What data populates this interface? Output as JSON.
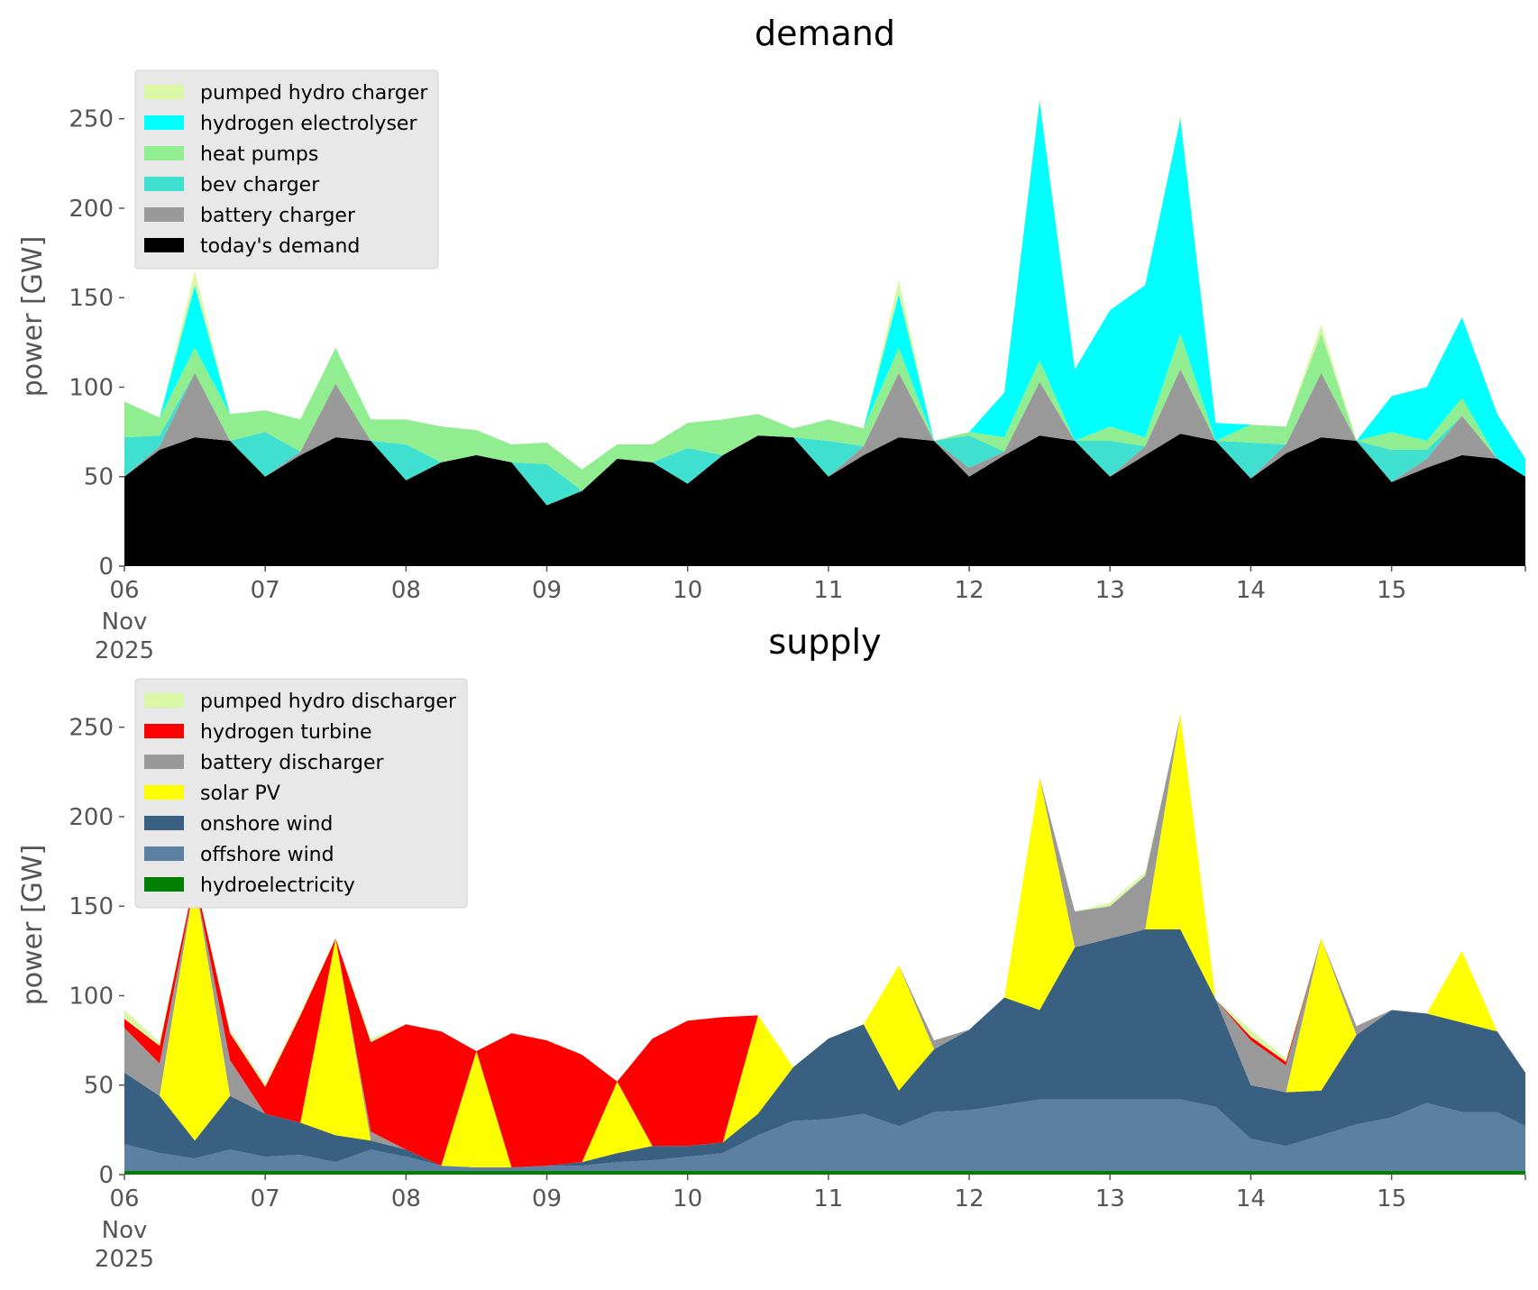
{
  "chart_data": [
    {
      "type": "area",
      "stacked": true,
      "title": "demand",
      "xlabel": "",
      "ylabel": "power [GW]",
      "ylim": [
        0,
        270
      ],
      "yticks": [
        0,
        50,
        100,
        150,
        200,
        250
      ],
      "xlim": [
        0,
        9.95
      ],
      "xticks": [
        {
          "x": 0,
          "label": "06",
          "sub": [
            "Nov",
            "2025"
          ]
        },
        {
          "x": 1,
          "label": "07"
        },
        {
          "x": 2,
          "label": "08"
        },
        {
          "x": 3,
          "label": "09"
        },
        {
          "x": 4,
          "label": "10"
        },
        {
          "x": 5,
          "label": "11"
        },
        {
          "x": 6,
          "label": "12"
        },
        {
          "x": 7,
          "label": "13"
        },
        {
          "x": 8,
          "label": "14"
        },
        {
          "x": 9,
          "label": "15"
        }
      ],
      "x_unit": "days after 06 Nov 2025",
      "grid": false,
      "legend_position": "upper-left",
      "legend_order": [
        "pumped hydro charger",
        "hydrogen electrolyser",
        "heat pumps",
        "bev charger",
        "battery charger",
        "today's demand"
      ],
      "x": [
        0,
        0.25,
        0.5,
        0.75,
        1,
        1.25,
        1.5,
        1.75,
        2,
        2.25,
        2.5,
        2.75,
        3,
        3.25,
        3.5,
        3.75,
        4,
        4.25,
        4.5,
        4.75,
        5,
        5.25,
        5.5,
        5.75,
        6,
        6.25,
        6.5,
        6.75,
        7,
        7.25,
        7.5,
        7.75,
        8,
        8.25,
        8.5,
        8.75,
        9,
        9.25,
        9.5,
        9.75,
        9.95
      ],
      "series": [
        {
          "name": "today's demand",
          "color": "#000000",
          "values": [
            50,
            65,
            72,
            70,
            50,
            62,
            72,
            70,
            48,
            58,
            62,
            58,
            34,
            42,
            60,
            58,
            46,
            62,
            73,
            72,
            50,
            62,
            72,
            70,
            50,
            62,
            73,
            70,
            50,
            62,
            74,
            70,
            49,
            63,
            72,
            70,
            47,
            55,
            62,
            60,
            50
          ]
        },
        {
          "name": "battery charger",
          "color": "#999999",
          "values": [
            0,
            2,
            36,
            0,
            0,
            2,
            30,
            0,
            0,
            0,
            0,
            0,
            0,
            0,
            0,
            0,
            0,
            0,
            0,
            0,
            0,
            5,
            36,
            0,
            5,
            2,
            30,
            0,
            0,
            5,
            36,
            0,
            0,
            5,
            36,
            0,
            0,
            5,
            22,
            0,
            0
          ]
        },
        {
          "name": "bev charger",
          "color": "#40E0D0",
          "values": [
            22,
            6,
            0,
            0,
            25,
            0,
            0,
            0,
            20,
            0,
            0,
            0,
            23,
            0,
            0,
            0,
            20,
            0,
            0,
            0,
            20,
            0,
            0,
            0,
            18,
            0,
            0,
            0,
            20,
            0,
            0,
            0,
            20,
            0,
            0,
            0,
            18,
            5,
            0,
            0,
            0
          ]
        },
        {
          "name": "heat pumps",
          "color": "#90EE90",
          "values": [
            20,
            10,
            14,
            15,
            12,
            18,
            20,
            12,
            14,
            20,
            14,
            10,
            12,
            12,
            8,
            10,
            14,
            20,
            12,
            5,
            12,
            10,
            14,
            0,
            2,
            8,
            12,
            0,
            8,
            5,
            20,
            0,
            10,
            10,
            22,
            0,
            10,
            5,
            10,
            0,
            0
          ]
        },
        {
          "name": "hydrogen electrolyser",
          "color": "#00FFFF",
          "values": [
            0,
            0,
            35,
            0,
            0,
            0,
            0,
            0,
            0,
            0,
            0,
            0,
            0,
            0,
            0,
            0,
            0,
            0,
            0,
            0,
            0,
            0,
            30,
            0,
            0,
            25,
            145,
            40,
            65,
            85,
            120,
            10,
            0,
            0,
            0,
            0,
            20,
            30,
            45,
            25,
            10
          ]
        },
        {
          "name": "pumped hydro charger",
          "color": "#DAF7A6",
          "values": [
            0,
            0,
            8,
            0,
            0,
            0,
            0,
            0,
            0,
            0,
            0,
            0,
            0,
            0,
            0,
            0,
            0,
            0,
            0,
            0,
            0,
            0,
            8,
            0,
            0,
            0,
            2,
            0,
            0,
            0,
            2,
            0,
            0,
            0,
            5,
            0,
            0,
            0,
            0,
            0,
            0
          ]
        }
      ]
    },
    {
      "type": "area",
      "stacked": true,
      "title": "supply",
      "xlabel": "",
      "ylabel": "power [GW]",
      "ylim": [
        0,
        270
      ],
      "yticks": [
        0,
        50,
        100,
        150,
        200,
        250
      ],
      "xlim": [
        0,
        9.95
      ],
      "xticks": [
        {
          "x": 0,
          "label": "06",
          "sub": [
            "Nov",
            "2025"
          ]
        },
        {
          "x": 1,
          "label": "07"
        },
        {
          "x": 2,
          "label": "08"
        },
        {
          "x": 3,
          "label": "09"
        },
        {
          "x": 4,
          "label": "10"
        },
        {
          "x": 5,
          "label": "11"
        },
        {
          "x": 6,
          "label": "12"
        },
        {
          "x": 7,
          "label": "13"
        },
        {
          "x": 8,
          "label": "14"
        },
        {
          "x": 9,
          "label": "15"
        }
      ],
      "x_unit": "days after 06 Nov 2025",
      "grid": false,
      "legend_position": "upper-left",
      "legend_order": [
        "pumped hydro discharger",
        "hydrogen turbine",
        "battery discharger",
        "solar PV",
        "onshore wind",
        "offshore wind",
        "hydroelectricity"
      ],
      "x": [
        0,
        0.25,
        0.5,
        0.75,
        1,
        1.25,
        1.5,
        1.75,
        2,
        2.25,
        2.5,
        2.75,
        3,
        3.25,
        3.5,
        3.75,
        4,
        4.25,
        4.5,
        4.75,
        5,
        5.25,
        5.5,
        5.75,
        6,
        6.25,
        6.5,
        6.75,
        7,
        7.25,
        7.5,
        7.75,
        8,
        8.25,
        8.5,
        8.75,
        9,
        9.25,
        9.5,
        9.75,
        9.95
      ],
      "series": [
        {
          "name": "hydroelectricity",
          "color": "#008000",
          "values": [
            2,
            2,
            2,
            2,
            2,
            2,
            2,
            2,
            2,
            2,
            2,
            2,
            2,
            2,
            2,
            2,
            2,
            2,
            2,
            2,
            2,
            2,
            2,
            2,
            2,
            2,
            2,
            2,
            2,
            2,
            2,
            2,
            2,
            2,
            2,
            2,
            2,
            2,
            2,
            2,
            2
          ]
        },
        {
          "name": "offshore wind",
          "color": "#5B80A2",
          "values": [
            15,
            10,
            7,
            12,
            8,
            9,
            5,
            12,
            8,
            3,
            2,
            2,
            3,
            3,
            5,
            6,
            8,
            10,
            20,
            28,
            29,
            32,
            25,
            33,
            34,
            37,
            40,
            40,
            40,
            40,
            40,
            36,
            18,
            14,
            20,
            26,
            30,
            38,
            33,
            33,
            25
          ]
        },
        {
          "name": "onshore wind",
          "color": "#3A6081",
          "values": [
            40,
            32,
            10,
            30,
            24,
            18,
            15,
            5,
            4,
            0,
            0,
            0,
            0,
            2,
            5,
            8,
            6,
            6,
            12,
            30,
            45,
            50,
            20,
            35,
            45,
            60,
            50,
            85,
            90,
            95,
            95,
            60,
            30,
            30,
            25,
            50,
            60,
            50,
            50,
            45,
            30
          ]
        },
        {
          "name": "solar PV",
          "color": "#FFFF00",
          "values": [
            0,
            0,
            145,
            0,
            0,
            0,
            110,
            0,
            0,
            0,
            65,
            0,
            0,
            0,
            40,
            0,
            0,
            0,
            55,
            0,
            0,
            0,
            70,
            0,
            0,
            0,
            130,
            0,
            0,
            0,
            120,
            0,
            0,
            0,
            85,
            0,
            0,
            0,
            40,
            0,
            0
          ]
        },
        {
          "name": "battery discharger",
          "color": "#999999",
          "values": [
            25,
            18,
            0,
            20,
            0,
            0,
            0,
            5,
            0,
            0,
            0,
            0,
            0,
            0,
            0,
            0,
            0,
            0,
            0,
            0,
            0,
            0,
            0,
            5,
            0,
            0,
            0,
            20,
            18,
            30,
            0,
            0,
            25,
            15,
            0,
            5,
            0,
            0,
            0,
            0,
            0
          ]
        },
        {
          "name": "hydrogen turbine",
          "color": "#FF0000",
          "values": [
            5,
            10,
            2,
            15,
            15,
            60,
            0,
            50,
            70,
            75,
            0,
            75,
            70,
            60,
            0,
            60,
            70,
            70,
            0,
            0,
            0,
            0,
            0,
            0,
            0,
            0,
            0,
            0,
            0,
            0,
            0,
            0,
            2,
            2,
            0,
            0,
            0,
            0,
            0,
            0,
            0
          ]
        },
        {
          "name": "pumped hydro discharger",
          "color": "#DAF7A6",
          "values": [
            5,
            2,
            0,
            2,
            2,
            2,
            0,
            2,
            0,
            0,
            0,
            0,
            0,
            0,
            0,
            0,
            0,
            0,
            0,
            0,
            0,
            0,
            0,
            0,
            0,
            0,
            0,
            0,
            2,
            2,
            0,
            0,
            4,
            2,
            0,
            0,
            0,
            0,
            0,
            0,
            0
          ]
        }
      ]
    }
  ]
}
